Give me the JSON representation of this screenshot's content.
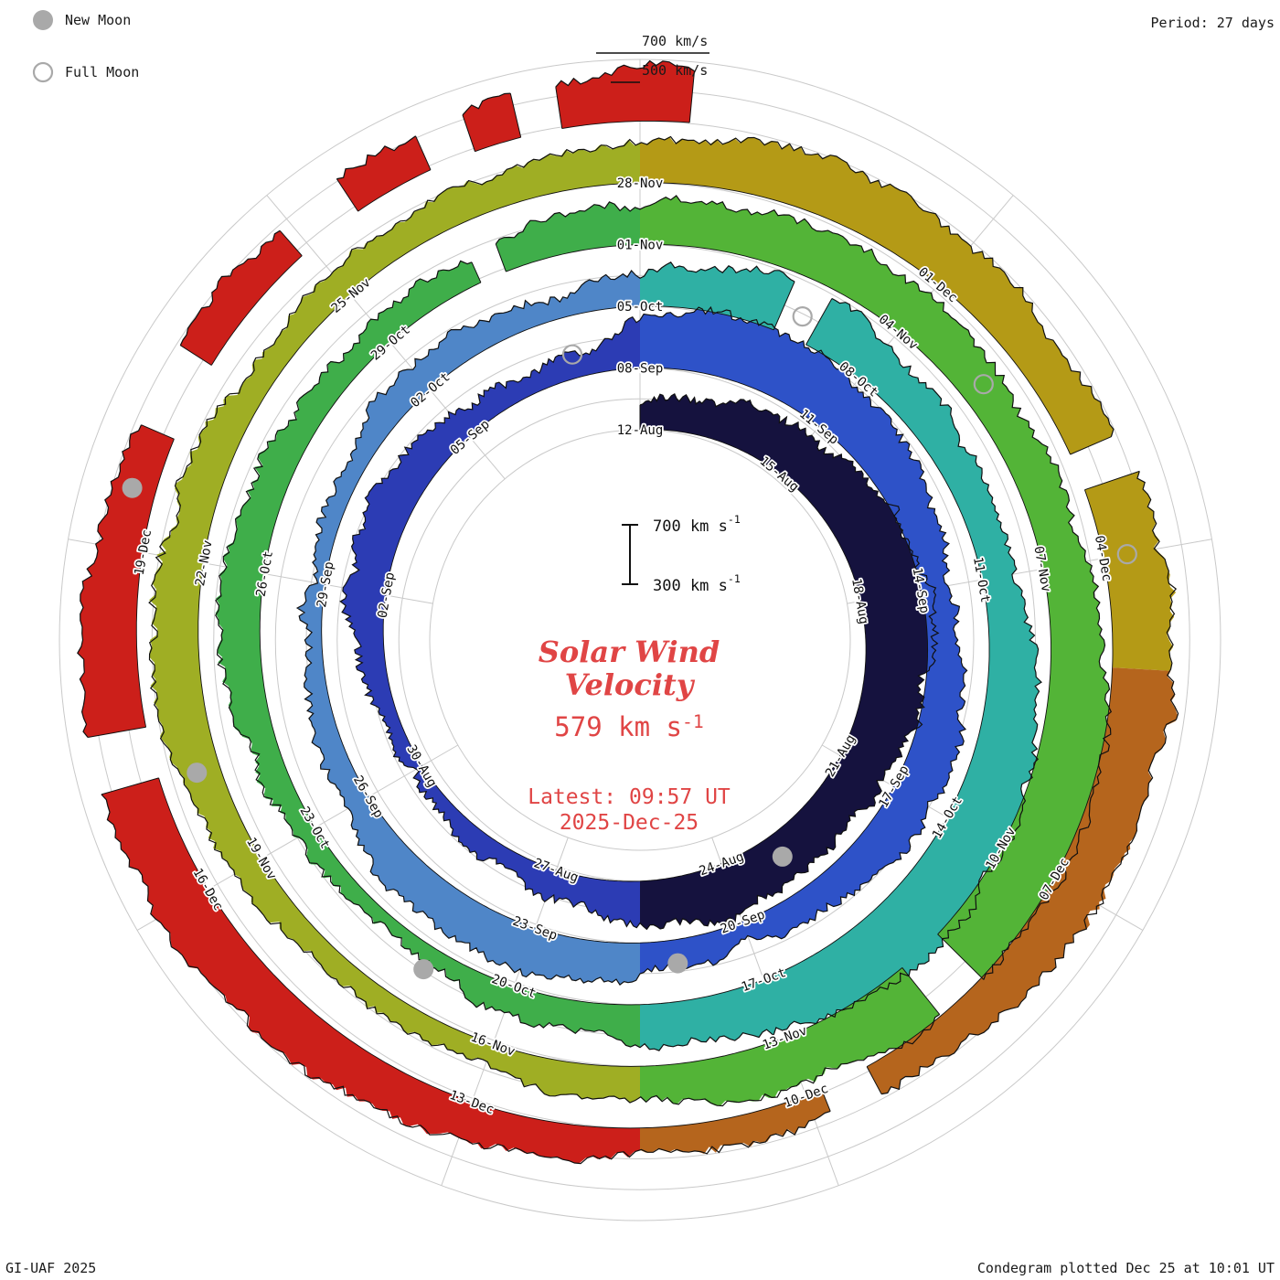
{
  "header": {
    "period_label": "Period: 27 days"
  },
  "legend": {
    "new_moon": "New Moon",
    "full_moon": "Full Moon"
  },
  "footer": {
    "left": "GI-UAF 2025",
    "right": "Condegram plotted Dec 25 at 10:01 UT"
  },
  "center": {
    "title_line1": "Solar Wind",
    "title_line2": "Velocity",
    "value": "579",
    "value_units": "km s",
    "value_exp": "-1",
    "latest_line1": "Latest: 09:57 UT",
    "latest_line2": "2025-Dec-25",
    "scale_top": "700 km s",
    "scale_top_exp": "-1",
    "scale_bottom": "300 km s",
    "scale_bottom_exp": "-1",
    "accent_color": "#e04545"
  },
  "outer_scale": {
    "labels": [
      "700 km/s",
      "500 km/s"
    ]
  },
  "chart_data": {
    "type": "area",
    "title": "Solar Wind Velocity Condegram",
    "ylabel": "Solar wind velocity",
    "units": "km/s",
    "start_date": "2025-08-12",
    "end_day": 135.41,
    "days_per_turn": 27,
    "r0": 230,
    "dr_per_turn": 67.5,
    "v_min": 300,
    "v_max": 700,
    "latest_velocity": 579,
    "velocity_daily": [
      430,
      470,
      520,
      560,
      600,
      640,
      660,
      640,
      600,
      560,
      540,
      560,
      580,
      540,
      480,
      420,
      380,
      360,
      350,
      370,
      420,
      480,
      520,
      490,
      440,
      400,
      380,
      560,
      620,
      640,
      600,
      540,
      480,
      440,
      470,
      510,
      530,
      490,
      430,
      390,
      430,
      480,
      520,
      540,
      500,
      450,
      410,
      380,
      360,
      380,
      420,
      460,
      430,
      400,
      480,
      530,
      570,
      540,
      490,
      450,
      480,
      540,
      600,
      650,
      670,
      630,
      570,
      510,
      460,
      420,
      390,
      370,
      390,
      430,
      470,
      500,
      470,
      430,
      410,
      430,
      460,
      500,
      540,
      580,
      560,
      520,
      490,
      530,
      590,
      650,
      680,
      660,
      620,
      560,
      500,
      450,
      410,
      390,
      410,
      450,
      500,
      540,
      510,
      470,
      440,
      420,
      440,
      470,
      520,
      560,
      590,
      570,
      540,
      560,
      600,
      630,
      600,
      560,
      510,
      470,
      440,
      420,
      440,
      480,
      530,
      570,
      600,
      620,
      590,
      550,
      510,
      480,
      460,
      490,
      530,
      579
    ],
    "color_segments": [
      {
        "from": 0,
        "to": 13.5,
        "color": "#15123e"
      },
      {
        "from": 13.5,
        "to": 27,
        "color": "#2c3cb4"
      },
      {
        "from": 27,
        "to": 40.5,
        "color": "#2e52c8"
      },
      {
        "from": 40.5,
        "to": 54,
        "color": "#4f86c8"
      },
      {
        "from": 54,
        "to": 67.5,
        "color": "#2fb0a4"
      },
      {
        "from": 67.5,
        "to": 81,
        "color": "#3fae4a"
      },
      {
        "from": 81,
        "to": 94.5,
        "color": "#53b437"
      },
      {
        "from": 94.5,
        "to": 108,
        "color": "#9fae24"
      },
      {
        "from": 108,
        "to": 115,
        "color": "#b49a16"
      },
      {
        "from": 115,
        "to": 121.5,
        "color": "#b5651d"
      },
      {
        "from": 121.5,
        "to": 135.41,
        "color": "#cc1f1a"
      }
    ],
    "gaps": [
      [
        55.75,
        56.2
      ],
      [
        79.2,
        79.5
      ],
      [
        91.1,
        91.6
      ],
      [
        113.0,
        113.35
      ],
      [
        119.4,
        119.85
      ],
      [
        127.05,
        127.5
      ],
      [
        130.0,
        130.7
      ],
      [
        131.9,
        132.5
      ],
      [
        133.2,
        133.6
      ],
      [
        134.0,
        134.35
      ]
    ],
    "date_labels": [
      {
        "day": 0,
        "label": "12-Aug"
      },
      {
        "day": 3,
        "label": "15-Aug"
      },
      {
        "day": 6,
        "label": "18-Aug"
      },
      {
        "day": 9,
        "label": "21-Aug"
      },
      {
        "day": 12,
        "label": "24-Aug"
      },
      {
        "day": 15,
        "label": "27-Aug"
      },
      {
        "day": 18,
        "label": "30-Aug"
      },
      {
        "day": 21,
        "label": "02-Sep"
      },
      {
        "day": 24,
        "label": "05-Sep"
      },
      {
        "day": 27,
        "label": "08-Sep"
      },
      {
        "day": 30,
        "label": "11-Sep"
      },
      {
        "day": 33,
        "label": "14-Sep"
      },
      {
        "day": 36,
        "label": "17-Sep"
      },
      {
        "day": 39,
        "label": "20-Sep"
      },
      {
        "day": 42,
        "label": "23-Sep"
      },
      {
        "day": 45,
        "label": "26-Sep"
      },
      {
        "day": 48,
        "label": "29-Sep"
      },
      {
        "day": 51,
        "label": "02-Oct"
      },
      {
        "day": 54,
        "label": "05-Oct"
      },
      {
        "day": 57,
        "label": "08-Oct"
      },
      {
        "day": 60,
        "label": "11-Oct"
      },
      {
        "day": 63,
        "label": "14-Oct"
      },
      {
        "day": 66,
        "label": "17-Oct"
      },
      {
        "day": 69,
        "label": "20-Oct"
      },
      {
        "day": 72,
        "label": "23-Oct"
      },
      {
        "day": 75,
        "label": "26-Oct"
      },
      {
        "day": 78,
        "label": "29-Oct"
      },
      {
        "day": 81,
        "label": "01-Nov"
      },
      {
        "day": 84,
        "label": "04-Nov"
      },
      {
        "day": 87,
        "label": "07-Nov"
      },
      {
        "day": 90,
        "label": "10-Nov"
      },
      {
        "day": 93,
        "label": "13-Nov"
      },
      {
        "day": 96,
        "label": "16-Nov"
      },
      {
        "day": 99,
        "label": "19-Nov"
      },
      {
        "day": 102,
        "label": "22-Nov"
      },
      {
        "day": 105,
        "label": "25-Nov"
      },
      {
        "day": 108,
        "label": "28-Nov"
      },
      {
        "day": 111,
        "label": "01-Dec"
      },
      {
        "day": 114,
        "label": "04-Dec"
      },
      {
        "day": 117,
        "label": "07-Dec"
      },
      {
        "day": 120,
        "label": "10-Dec"
      },
      {
        "day": 123,
        "label": "13-Dec"
      },
      {
        "day": 126,
        "label": "16-Dec"
      },
      {
        "day": 129,
        "label": "19-Dec"
      }
    ],
    "moons": {
      "new_days": [
        11,
        40,
        70,
        100,
        129.5
      ],
      "full_days": [
        26,
        56,
        85,
        114
      ]
    },
    "grid": {
      "r_min": 230,
      "r_max": 635,
      "ring_step": 33.75,
      "spoke_step_deg": 40,
      "color": "#c9c9c9"
    }
  }
}
